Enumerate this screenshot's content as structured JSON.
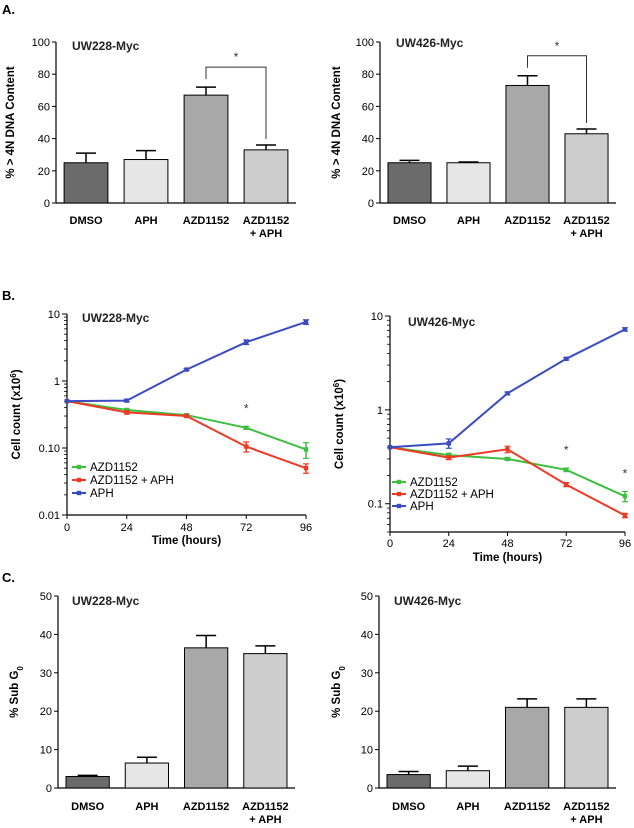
{
  "panels": {
    "A": "A.",
    "B": "B.",
    "C": "C."
  },
  "colors": {
    "dmso": "#6b6b6b",
    "aph_bar": "#e6e6e6",
    "azd_bar": "#a8a8a8",
    "combo_bar": "#cdcdcd",
    "green": "#3fbf3f",
    "red": "#ee3a24",
    "blue": "#3b4cc0"
  },
  "chart_data": [
    {
      "id": "A1",
      "type": "bar",
      "panel": "A",
      "title": "UW228-Myc",
      "ylabel": "% > 4N DNA Content",
      "categories": [
        [
          "DMSO"
        ],
        [
          "APH"
        ],
        [
          "AZD1152"
        ],
        [
          "AZD1152",
          "+ APH"
        ]
      ],
      "values": [
        25,
        27,
        67,
        33
      ],
      "errors": [
        6,
        5.5,
        5,
        3
      ],
      "ylim": [
        0,
        100
      ],
      "yticks": [
        "0",
        "20",
        "40",
        "60",
        "80",
        "100"
      ],
      "annotation": "*"
    },
    {
      "id": "A2",
      "type": "bar",
      "panel": "A",
      "title": "UW426-Myc",
      "ylabel": "% > 4N DNA Content",
      "categories": [
        [
          "DMSO"
        ],
        [
          "APH"
        ],
        [
          "AZD1152"
        ],
        [
          "AZD1152",
          "+ APH"
        ]
      ],
      "values": [
        25,
        25,
        73,
        43
      ],
      "errors": [
        1.5,
        0.5,
        6,
        3
      ],
      "ylim": [
        0,
        100
      ],
      "yticks": [
        "0",
        "20",
        "40",
        "60",
        "80",
        "100"
      ],
      "annotation": "*"
    },
    {
      "id": "B1",
      "type": "line",
      "panel": "B",
      "yscale": "log",
      "title": "UW228-Myc",
      "ylabel": "Cell count (x10",
      "ylabel_sup": "6",
      "ylabel_end": ")",
      "xlabel": "Time (hours)",
      "x": [
        0,
        24,
        48,
        72,
        96
      ],
      "xticks": [
        "0",
        "24",
        "48",
        "72",
        "96"
      ],
      "ylim": [
        0.01,
        10
      ],
      "yticks": [
        {
          "v": 0.01,
          "t": "0.01"
        },
        {
          "v": 0.1,
          "t": "0.10"
        },
        {
          "v": 1,
          "t": "1"
        },
        {
          "v": 10,
          "t": "10"
        }
      ],
      "series": [
        {
          "name": "AZD1152",
          "color": "#3fbf3f",
          "values": [
            0.5,
            0.37,
            0.31,
            0.2,
            0.095
          ],
          "errors": [
            0,
            0.015,
            0.01,
            0.01,
            0.025
          ]
        },
        {
          "name": "AZD1152 + APH",
          "color": "#ee3a24",
          "values": [
            0.5,
            0.34,
            0.3,
            0.105,
            0.05
          ],
          "errors": [
            0,
            0.02,
            0.01,
            0.018,
            0.008
          ]
        },
        {
          "name": "APH",
          "color": "#3b4cc0",
          "values": [
            0.5,
            0.51,
            1.48,
            3.8,
            7.6
          ],
          "errors": [
            0,
            0.02,
            0.05,
            0.3,
            0.6
          ]
        }
      ],
      "stars": [
        {
          "x": 72,
          "text": "*"
        }
      ]
    },
    {
      "id": "B2",
      "type": "line",
      "panel": "B",
      "yscale": "log",
      "title": "UW426-Myc",
      "ylabel": "Cell count (x10",
      "ylabel_sup": "6",
      "ylabel_end": ")",
      "xlabel": "Time (hours)",
      "x": [
        0,
        24,
        48,
        72,
        96
      ],
      "xticks": [
        "0",
        "24",
        "48",
        "72",
        "96"
      ],
      "ylim": [
        0.05,
        10
      ],
      "yticks": [
        {
          "v": 0.1,
          "t": "0.1"
        },
        {
          "v": 1,
          "t": "1"
        },
        {
          "v": 10,
          "t": "10"
        }
      ],
      "series": [
        {
          "name": "AZD1152",
          "color": "#3fbf3f",
          "values": [
            0.4,
            0.33,
            0.3,
            0.23,
            0.12
          ],
          "errors": [
            0,
            0.015,
            0.01,
            0.01,
            0.015
          ]
        },
        {
          "name": "AZD1152 + APH",
          "color": "#ee3a24",
          "values": [
            0.4,
            0.31,
            0.38,
            0.16,
            0.075
          ],
          "errors": [
            0,
            0.015,
            0.03,
            0.008,
            0.004
          ]
        },
        {
          "name": "APH",
          "color": "#3b4cc0",
          "values": [
            0.4,
            0.44,
            1.5,
            3.5,
            7.2
          ],
          "errors": [
            0,
            0.05,
            0.05,
            0.1,
            0.3
          ]
        }
      ],
      "stars": [
        {
          "x": 72,
          "text": "*"
        },
        {
          "x": 96,
          "text": "*"
        }
      ]
    },
    {
      "id": "C1",
      "type": "bar",
      "panel": "C",
      "title": "UW228-Myc",
      "ylabel": "% Sub G",
      "ylabel_sub": "0",
      "categories": [
        [
          "DMSO"
        ],
        [
          "APH"
        ],
        [
          "AZD1152"
        ],
        [
          "AZD1152",
          "+ APH"
        ]
      ],
      "values": [
        3,
        6.5,
        36.5,
        35
      ],
      "errors": [
        0.3,
        1.5,
        3.2,
        2
      ],
      "ylim": [
        0,
        50
      ],
      "yticks": [
        "0",
        "10",
        "20",
        "30",
        "40",
        "50"
      ]
    },
    {
      "id": "C2",
      "type": "bar",
      "panel": "C",
      "title": "UW426-Myc",
      "ylabel": "% Sub G",
      "ylabel_sub": "0",
      "categories": [
        [
          "DMSO"
        ],
        [
          "APH"
        ],
        [
          "AZD1152"
        ],
        [
          "AZD1152",
          "+ APH"
        ]
      ],
      "values": [
        3.5,
        4.5,
        21,
        21
      ],
      "errors": [
        0.8,
        1.2,
        2.2,
        2.2
      ],
      "ylim": [
        0,
        50
      ],
      "yticks": [
        "0",
        "10",
        "20",
        "30",
        "40",
        "50"
      ]
    }
  ]
}
